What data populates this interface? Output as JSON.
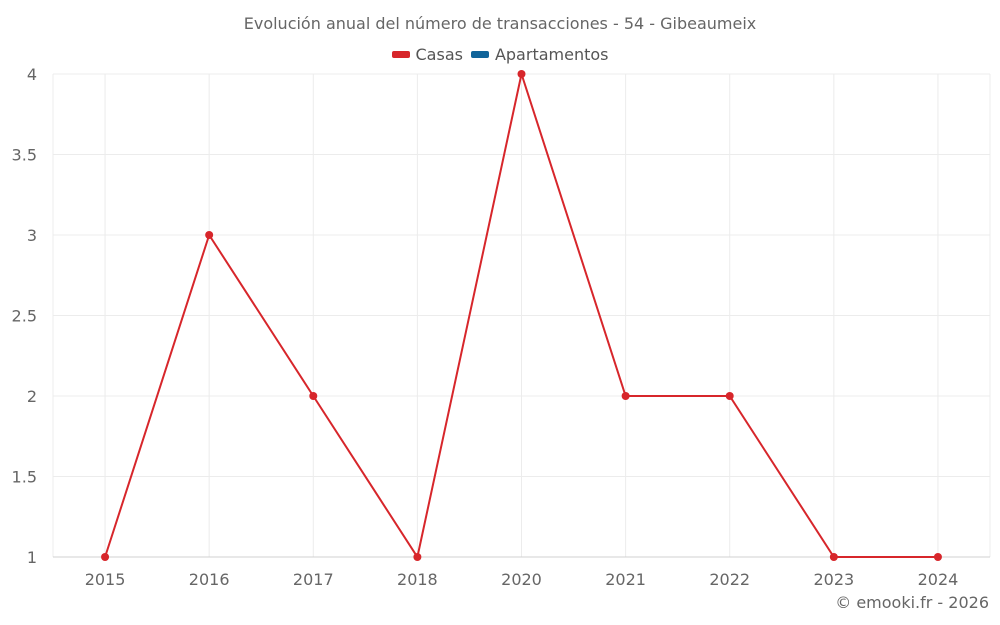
{
  "title": "Evolución anual del número de transacciones - 54 - Gibeaumeix",
  "legend": [
    {
      "label": "Casas",
      "color": "#d7262b"
    },
    {
      "label": "Apartamentos",
      "color": "#10649a"
    }
  ],
  "credit": "© emooki.fr - 2026",
  "chart_data": {
    "type": "line",
    "title": "Evolución anual del número de transacciones - 54 - Gibeaumeix",
    "categories": [
      "2015",
      "2016",
      "2017",
      "2018",
      "2020",
      "2021",
      "2022",
      "2023",
      "2024"
    ],
    "series": [
      {
        "name": "Casas",
        "color": "#d7262b",
        "values": [
          1,
          3,
          2,
          1,
          4,
          2,
          2,
          1,
          1
        ]
      },
      {
        "name": "Apartamentos",
        "color": "#10649a",
        "values": []
      }
    ],
    "xlabel": "",
    "ylabel": "",
    "ylim": [
      1,
      4
    ],
    "yticks": [
      "1",
      "1.5",
      "2",
      "2.5",
      "3",
      "3.5",
      "4"
    ],
    "grid": true,
    "legend_position": "top"
  }
}
